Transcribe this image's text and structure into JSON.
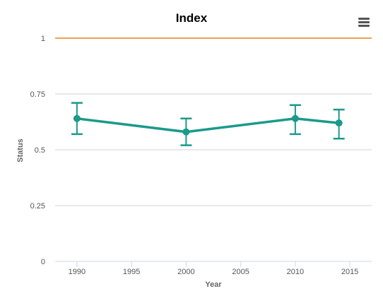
{
  "chart_data": {
    "type": "line",
    "title": "Index",
    "xlabel": "Year",
    "ylabel": "Status",
    "xlim": [
      1988,
      2017
    ],
    "ylim": [
      0,
      1
    ],
    "x_ticks": [
      1990,
      1995,
      2000,
      2005,
      2010,
      2015
    ],
    "y_ticks": [
      0,
      0.25,
      0.5,
      0.75,
      1
    ],
    "grid": true,
    "legend": "none",
    "reference_line": {
      "value": 1,
      "color": "#f0a050"
    },
    "series": [
      {
        "color": "#1a9a8a",
        "points": [
          {
            "x": 1990,
            "y": 0.64,
            "low": 0.57,
            "high": 0.71
          },
          {
            "x": 2000,
            "y": 0.58,
            "low": 0.52,
            "high": 0.64
          },
          {
            "x": 2010,
            "y": 0.64,
            "low": 0.57,
            "high": 0.7
          },
          {
            "x": 2014,
            "y": 0.62,
            "low": 0.55,
            "high": 0.68
          }
        ]
      }
    ]
  },
  "menu": {
    "icon": "hamburger-menu-icon"
  }
}
